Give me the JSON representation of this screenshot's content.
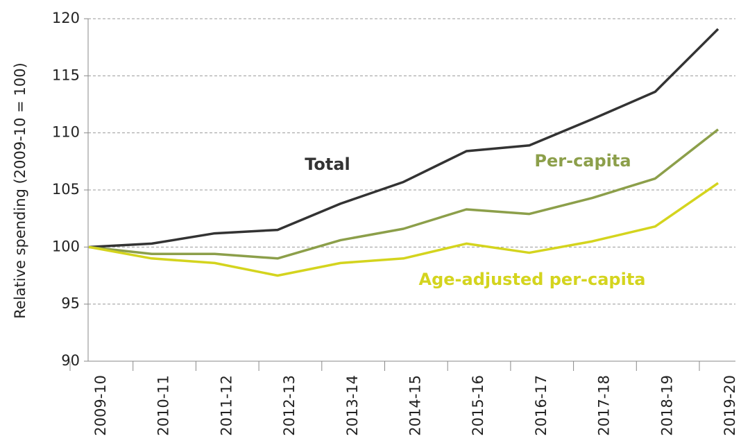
{
  "chart_data": {
    "type": "line",
    "y_label": "Relative spending (2009-10 = 100)",
    "categories": [
      "2009-10",
      "2010-11",
      "2011-12",
      "2012-13",
      "2013-14",
      "2014-15",
      "2015-16",
      "2016-17",
      "2017-18",
      "2018-19",
      "2019-20"
    ],
    "series": [
      {
        "name": "Total",
        "color": "#333333",
        "values": [
          100,
          100.3,
          101.2,
          101.5,
          103.8,
          105.7,
          108.4,
          108.9,
          111.2,
          113.6,
          119.1
        ]
      },
      {
        "name": "Per-capita",
        "color": "#8c9f4a",
        "values": [
          100,
          99.4,
          99.4,
          99.0,
          100.6,
          101.6,
          103.3,
          102.9,
          104.3,
          106.0,
          110.3
        ]
      },
      {
        "name": "Age-adjusted per-capita",
        "color": "#d4d41e",
        "values": [
          100,
          99.0,
          98.6,
          97.5,
          98.6,
          99.0,
          100.3,
          99.5,
          100.5,
          101.8,
          105.6
        ]
      }
    ],
    "ylim": [
      90,
      120
    ],
    "yticks": [
      90,
      95,
      100,
      105,
      110,
      115,
      120
    ],
    "grid": true
  }
}
